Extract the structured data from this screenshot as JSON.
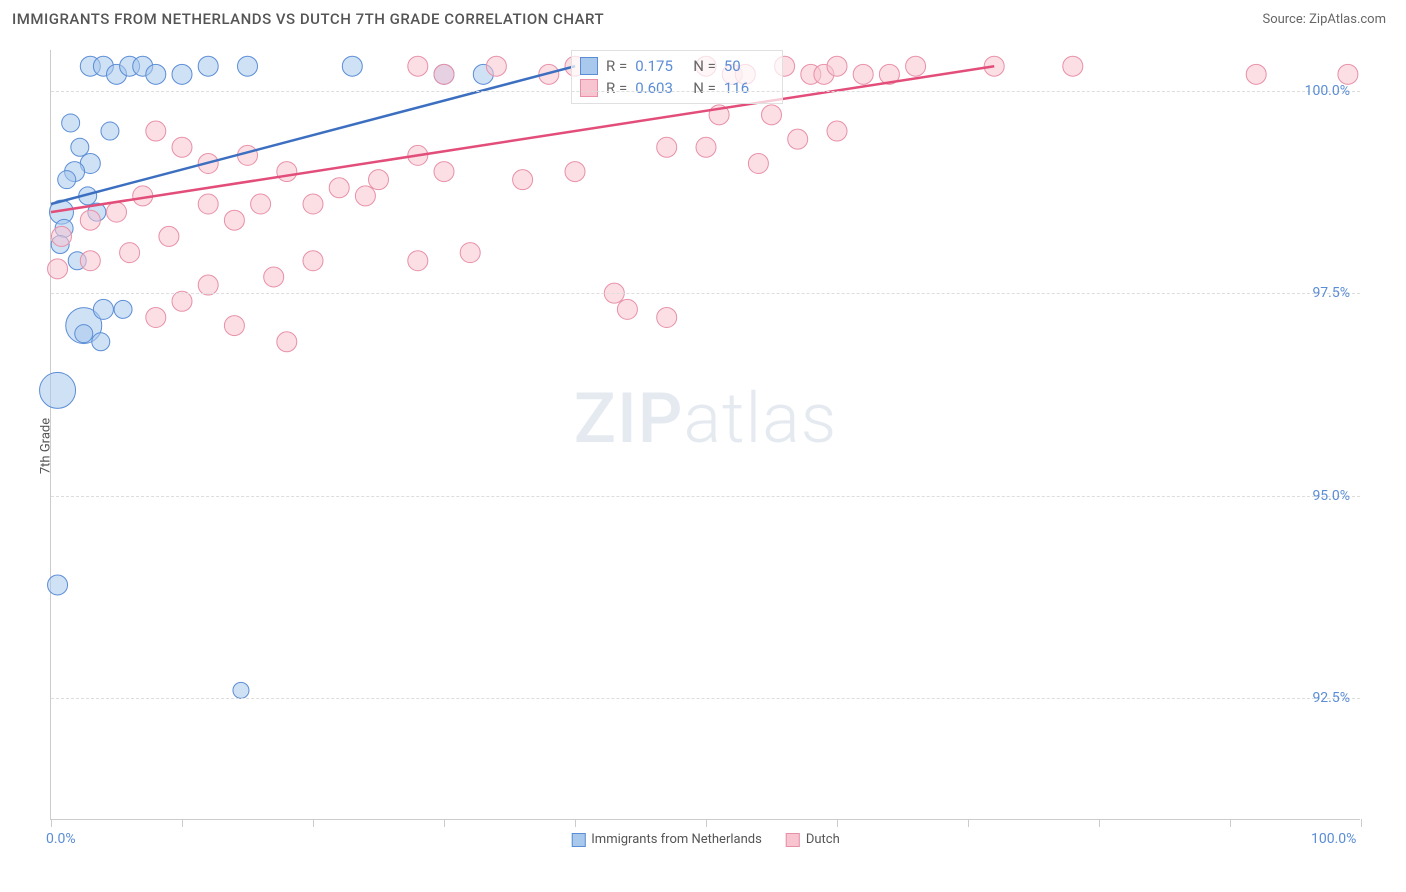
{
  "header": {
    "title": "IMMIGRANTS FROM NETHERLANDS VS DUTCH 7TH GRADE CORRELATION CHART",
    "source": "Source: ZipAtlas.com"
  },
  "chart": {
    "type": "scatter",
    "ylabel": "7th Grade",
    "xlim": [
      0,
      100
    ],
    "ylim": [
      91,
      100.5
    ],
    "xticks": [
      0,
      10,
      20,
      30,
      40,
      50,
      60,
      70,
      80,
      90,
      100
    ],
    "xtick_labels_shown": {
      "0": "0.0%",
      "100": "100.0%"
    },
    "yticks": [
      92.5,
      95.0,
      97.5,
      100.0
    ],
    "ytick_labels": [
      "92.5%",
      "95.0%",
      "97.5%",
      "100.0%"
    ],
    "background_color": "#ffffff",
    "grid_color": "#dddddd",
    "axis_color": "#cccccc",
    "tick_label_color": "#5b8dd6",
    "watermark": "ZIPatlas",
    "series": [
      {
        "name": "Immigrants from Netherlands",
        "fill_color": "#a8c8ec",
        "stroke_color": "#5b8dd6",
        "fill_opacity": 0.55,
        "line_color": "#3c6fc0",
        "line_width": 2.5,
        "marker_radius_base": 9,
        "stats": {
          "R": "0.175",
          "N": "50"
        },
        "trend": {
          "x1": 0,
          "y1": 98.6,
          "x2": 40,
          "y2": 100.3
        },
        "points": [
          {
            "x": 0.5,
            "y": 96.3,
            "r": 18
          },
          {
            "x": 2.5,
            "y": 97.1,
            "r": 18
          },
          {
            "x": 0.5,
            "y": 93.9,
            "r": 10
          },
          {
            "x": 14.5,
            "y": 92.6,
            "r": 8
          },
          {
            "x": 3.0,
            "y": 100.3,
            "r": 10
          },
          {
            "x": 4.0,
            "y": 100.3,
            "r": 10
          },
          {
            "x": 5.0,
            "y": 100.2,
            "r": 10
          },
          {
            "x": 6.0,
            "y": 100.3,
            "r": 10
          },
          {
            "x": 7.0,
            "y": 100.3,
            "r": 10
          },
          {
            "x": 8.0,
            "y": 100.2,
            "r": 10
          },
          {
            "x": 10.0,
            "y": 100.2,
            "r": 10
          },
          {
            "x": 12.0,
            "y": 100.3,
            "r": 10
          },
          {
            "x": 15.0,
            "y": 100.3,
            "r": 10
          },
          {
            "x": 23.0,
            "y": 100.3,
            "r": 10
          },
          {
            "x": 30.0,
            "y": 100.2,
            "r": 10
          },
          {
            "x": 33.0,
            "y": 100.2,
            "r": 10
          },
          {
            "x": 1.5,
            "y": 99.6,
            "r": 9
          },
          {
            "x": 2.2,
            "y": 99.3,
            "r": 9
          },
          {
            "x": 3.0,
            "y": 99.1,
            "r": 10
          },
          {
            "x": 1.8,
            "y": 99.0,
            "r": 10
          },
          {
            "x": 2.8,
            "y": 98.7,
            "r": 9
          },
          {
            "x": 1.2,
            "y": 98.9,
            "r": 9
          },
          {
            "x": 4.5,
            "y": 99.5,
            "r": 9
          },
          {
            "x": 3.5,
            "y": 98.5,
            "r": 9
          },
          {
            "x": 0.8,
            "y": 98.5,
            "r": 12
          },
          {
            "x": 1.0,
            "y": 98.3,
            "r": 9
          },
          {
            "x": 0.7,
            "y": 98.1,
            "r": 9
          },
          {
            "x": 2.0,
            "y": 97.9,
            "r": 9
          },
          {
            "x": 4.0,
            "y": 97.3,
            "r": 10
          },
          {
            "x": 5.5,
            "y": 97.3,
            "r": 9
          },
          {
            "x": 2.5,
            "y": 97.0,
            "r": 9
          },
          {
            "x": 3.8,
            "y": 96.9,
            "r": 9
          }
        ]
      },
      {
        "name": "Dutch",
        "fill_color": "#f7c4d0",
        "stroke_color": "#e890a8",
        "fill_opacity": 0.55,
        "line_color": "#e34d7a",
        "line_width": 2.5,
        "marker_radius_base": 9,
        "stats": {
          "R": "0.603",
          "N": "116"
        },
        "trend": {
          "x1": 0,
          "y1": 98.5,
          "x2": 72,
          "y2": 100.3
        },
        "points": [
          {
            "x": 28,
            "y": 100.3,
            "r": 10
          },
          {
            "x": 30,
            "y": 100.2,
            "r": 10
          },
          {
            "x": 34,
            "y": 100.3,
            "r": 10
          },
          {
            "x": 38,
            "y": 100.2,
            "r": 10
          },
          {
            "x": 40,
            "y": 100.3,
            "r": 10
          },
          {
            "x": 50,
            "y": 100.3,
            "r": 10
          },
          {
            "x": 52,
            "y": 100.2,
            "r": 10
          },
          {
            "x": 53,
            "y": 100.2,
            "r": 10
          },
          {
            "x": 56,
            "y": 100.3,
            "r": 10
          },
          {
            "x": 58,
            "y": 100.2,
            "r": 10
          },
          {
            "x": 59,
            "y": 100.2,
            "r": 10
          },
          {
            "x": 60,
            "y": 100.3,
            "r": 10
          },
          {
            "x": 62,
            "y": 100.2,
            "r": 10
          },
          {
            "x": 64,
            "y": 100.2,
            "r": 10
          },
          {
            "x": 66,
            "y": 100.3,
            "r": 10
          },
          {
            "x": 72,
            "y": 100.3,
            "r": 10
          },
          {
            "x": 78,
            "y": 100.3,
            "r": 10
          },
          {
            "x": 92,
            "y": 100.2,
            "r": 10
          },
          {
            "x": 99,
            "y": 100.2,
            "r": 10
          },
          {
            "x": 51,
            "y": 99.7,
            "r": 10
          },
          {
            "x": 55,
            "y": 99.7,
            "r": 10
          },
          {
            "x": 47,
            "y": 99.3,
            "r": 10
          },
          {
            "x": 50,
            "y": 99.3,
            "r": 10
          },
          {
            "x": 57,
            "y": 99.4,
            "r": 10
          },
          {
            "x": 60,
            "y": 99.5,
            "r": 10
          },
          {
            "x": 54,
            "y": 99.1,
            "r": 10
          },
          {
            "x": 40,
            "y": 99.0,
            "r": 10
          },
          {
            "x": 36,
            "y": 98.9,
            "r": 10
          },
          {
            "x": 28,
            "y": 99.2,
            "r": 10
          },
          {
            "x": 30,
            "y": 99.0,
            "r": 10
          },
          {
            "x": 25,
            "y": 98.9,
            "r": 10
          },
          {
            "x": 22,
            "y": 98.8,
            "r": 10
          },
          {
            "x": 18,
            "y": 99.0,
            "r": 10
          },
          {
            "x": 15,
            "y": 99.2,
            "r": 10
          },
          {
            "x": 12,
            "y": 99.1,
            "r": 10
          },
          {
            "x": 10,
            "y": 99.3,
            "r": 10
          },
          {
            "x": 8,
            "y": 99.5,
            "r": 10
          },
          {
            "x": 7,
            "y": 98.7,
            "r": 10
          },
          {
            "x": 5,
            "y": 98.5,
            "r": 10
          },
          {
            "x": 3,
            "y": 98.4,
            "r": 10
          },
          {
            "x": 0.8,
            "y": 98.2,
            "r": 10
          },
          {
            "x": 0.5,
            "y": 97.8,
            "r": 10
          },
          {
            "x": 3,
            "y": 97.9,
            "r": 10
          },
          {
            "x": 6,
            "y": 98.0,
            "r": 10
          },
          {
            "x": 9,
            "y": 98.2,
            "r": 10
          },
          {
            "x": 12,
            "y": 98.6,
            "r": 10
          },
          {
            "x": 16,
            "y": 98.6,
            "r": 10
          },
          {
            "x": 20,
            "y": 98.6,
            "r": 10
          },
          {
            "x": 24,
            "y": 98.7,
            "r": 10
          },
          {
            "x": 14,
            "y": 98.4,
            "r": 10
          },
          {
            "x": 32,
            "y": 98.0,
            "r": 10
          },
          {
            "x": 28,
            "y": 97.9,
            "r": 10
          },
          {
            "x": 20,
            "y": 97.9,
            "r": 10
          },
          {
            "x": 17,
            "y": 97.7,
            "r": 10
          },
          {
            "x": 12,
            "y": 97.6,
            "r": 10
          },
          {
            "x": 10,
            "y": 97.4,
            "r": 10
          },
          {
            "x": 8,
            "y": 97.2,
            "r": 10
          },
          {
            "x": 44,
            "y": 97.3,
            "r": 10
          },
          {
            "x": 47,
            "y": 97.2,
            "r": 10
          },
          {
            "x": 43,
            "y": 97.5,
            "r": 10
          },
          {
            "x": 14,
            "y": 97.1,
            "r": 10
          },
          {
            "x": 18,
            "y": 96.9,
            "r": 10
          }
        ]
      }
    ],
    "bottom_legend": [
      {
        "label": "Immigrants from Netherlands",
        "fill": "#a8c8ec",
        "stroke": "#5b8dd6"
      },
      {
        "label": "Dutch",
        "fill": "#f7c4d0",
        "stroke": "#e890a8"
      }
    ]
  }
}
